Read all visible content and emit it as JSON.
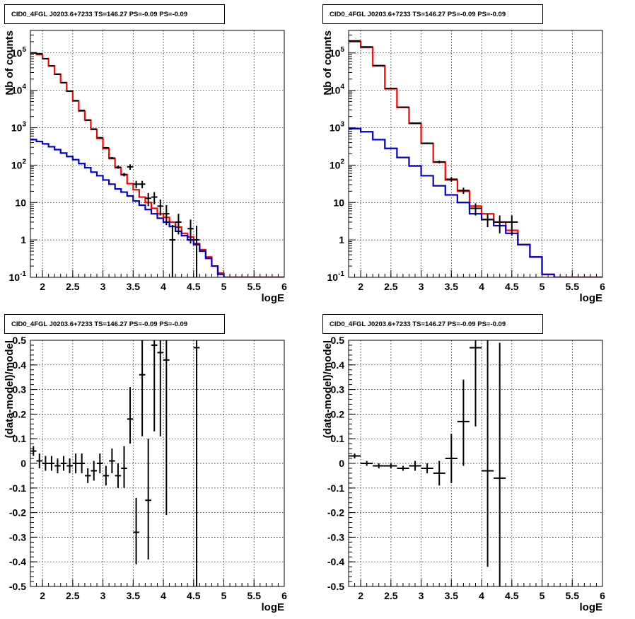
{
  "chart_data": [
    {
      "type": "histogram",
      "title": "CID0_4FGL J0203.6+7233 TS=146.27 PS=-0.09 PS=-0.09",
      "xlabel": "logE",
      "ylabel": "Nb of counts",
      "xlim": [
        1.8,
        6
      ],
      "ylim": [
        0.1,
        400000
      ],
      "log_y": true,
      "grid": true,
      "x_ticks": [
        "2",
        "2.5",
        "3",
        "3.5",
        "4",
        "4.5",
        "5",
        "5.5",
        "6"
      ],
      "y_ticks": [
        "10^-1",
        "1",
        "10",
        "10^2",
        "10^3",
        "10^4",
        "10^5"
      ],
      "bin_edges": [
        1.8,
        1.9,
        2.0,
        2.1,
        2.2,
        2.3,
        2.4,
        2.5,
        2.6,
        2.7,
        2.8,
        2.9,
        3.0,
        3.1,
        3.2,
        3.3,
        3.4,
        3.5,
        3.6,
        3.7,
        3.8,
        3.9,
        4.0,
        4.1,
        4.2,
        4.3,
        4.4,
        4.5,
        4.6,
        4.7,
        4.8,
        4.9,
        5.0,
        5.1,
        5.2,
        6.0
      ],
      "series": [
        {
          "color": "#ff0000",
          "kind": "step",
          "values": [
            100000,
            90000,
            70000,
            45000,
            27000,
            16000,
            9500,
            5200,
            2800,
            1600,
            900,
            520,
            280,
            150,
            85,
            55,
            32,
            22,
            14,
            10,
            7,
            5,
            4,
            3,
            2.2,
            1.5,
            1.2,
            0.8,
            0.55,
            0.35,
            0.2,
            0.13,
            0.1,
            0.1,
            0.1
          ]
        },
        {
          "color": "#0000cc",
          "kind": "step",
          "values": [
            480,
            430,
            370,
            310,
            260,
            210,
            170,
            140,
            110,
            85,
            65,
            52,
            40,
            31,
            23,
            19,
            15,
            11,
            8.5,
            6.5,
            5,
            3.8,
            3,
            2.3,
            1.7,
            1.3,
            1,
            0.75,
            0.5,
            0.32,
            0.2,
            0.12,
            0.1,
            0.1,
            0.1
          ]
        },
        {
          "color": "#000000",
          "kind": "points",
          "x": [
            1.85,
            1.95,
            2.05,
            2.15,
            2.25,
            2.35,
            2.45,
            2.55,
            2.65,
            2.75,
            2.85,
            2.95,
            3.05,
            3.15,
            3.25,
            3.35,
            3.45,
            3.55,
            3.65,
            3.75,
            3.85,
            3.95,
            4.05,
            4.15,
            4.25,
            4.45,
            4.55
          ],
          "y": [
            100000,
            95000,
            70000,
            45000,
            27000,
            16000,
            9500,
            5300,
            2900,
            1600,
            920,
            540,
            290,
            155,
            88,
            56,
            90,
            31,
            31,
            13,
            14,
            8,
            5,
            1,
            3,
            2,
            1
          ],
          "y_low": [
            99000,
            94000,
            69500,
            44700,
            26800,
            15900,
            9400,
            5200,
            2850,
            1550,
            890,
            520,
            275,
            145,
            80,
            50,
            75,
            24,
            24,
            8,
            9,
            4.5,
            2.5,
            0.1,
            1.4,
            0.8,
            0.1
          ],
          "y_high": [
            101000,
            96000,
            70500,
            45300,
            27200,
            16100,
            9600,
            5400,
            2950,
            1650,
            950,
            560,
            305,
            165,
            96,
            62,
            105,
            38,
            38,
            18,
            19,
            12,
            8.5,
            2.5,
            5,
            3.5,
            2.4
          ]
        }
      ]
    },
    {
      "type": "histogram",
      "title": "CID0_4FGL J0203.6+7233 TS=146.27 PS=-0.09 PS=-0.09",
      "xlabel": "logE",
      "ylabel": "Nb of counts",
      "xlim": [
        1.8,
        6
      ],
      "ylim": [
        0.1,
        400000
      ],
      "log_y": true,
      "grid": true,
      "x_ticks": [
        "2",
        "2.5",
        "3",
        "3.5",
        "4",
        "4.5",
        "5",
        "5.5",
        "6"
      ],
      "y_ticks": [
        "10^-1",
        "1",
        "10",
        "10^2",
        "10^3",
        "10^4",
        "10^5"
      ],
      "bin_edges": [
        1.8,
        2.0,
        2.2,
        2.4,
        2.6,
        2.8,
        3.0,
        3.2,
        3.4,
        3.6,
        3.8,
        4.0,
        4.2,
        4.4,
        4.6,
        4.8,
        5.0,
        5.2,
        5.4,
        6.0
      ],
      "series": [
        {
          "color": "#ff0000",
          "kind": "step",
          "values": [
            200000,
            140000,
            45000,
            11000,
            3500,
            1300,
            380,
            120,
            40,
            20,
            8,
            5,
            3,
            1.8,
            0.75,
            0.35,
            0.12,
            0.1,
            0.1
          ]
        },
        {
          "color": "#0000cc",
          "kind": "step",
          "values": [
            950,
            780,
            480,
            280,
            160,
            95,
            52,
            28,
            16,
            10,
            5,
            3.5,
            2.4,
            1.5,
            0.75,
            0.35,
            0.12,
            0.1,
            0.1
          ]
        },
        {
          "color": "#000000",
          "kind": "points",
          "x": [
            1.9,
            2.1,
            2.3,
            2.5,
            2.7,
            2.9,
            3.1,
            3.3,
            3.5,
            3.7,
            3.9,
            4.1,
            4.3,
            4.5
          ],
          "y": [
            210000,
            145000,
            46000,
            11200,
            3550,
            1320,
            385,
            122,
            42,
            21,
            7,
            3.5,
            3,
            3
          ],
          "y_low": [
            209000,
            144500,
            45700,
            11000,
            3450,
            1280,
            365,
            112,
            36,
            17,
            4.5,
            2.2,
            1.5,
            1.3
          ],
          "y_high": [
            211000,
            145500,
            46300,
            11400,
            3650,
            1360,
            405,
            132,
            48,
            25,
            9.5,
            5,
            4.5,
            4.5
          ]
        }
      ]
    },
    {
      "type": "scatter",
      "title": "CID0_4FGL J0203.6+7233 TS=146.27 PS=-0.09 PS=-0.09",
      "xlabel": "logE",
      "ylabel": "(data-model)/model",
      "xlim": [
        1.8,
        6
      ],
      "ylim": [
        -0.5,
        0.5
      ],
      "grid": true,
      "x_ticks": [
        "2",
        "2.5",
        "3",
        "3.5",
        "4",
        "4.5",
        "5",
        "5.5",
        "6"
      ],
      "y_ticks": [
        "-0.5",
        "-0.4",
        "-0.3",
        "-0.2",
        "-0.1",
        "0",
        "0.1",
        "0.2",
        "0.3",
        "0.4",
        "0.5"
      ],
      "series": [
        {
          "color": "#000000",
          "kind": "points",
          "x": [
            1.85,
            1.95,
            2.05,
            2.15,
            2.25,
            2.35,
            2.45,
            2.55,
            2.65,
            2.75,
            2.85,
            2.95,
            3.05,
            3.15,
            3.25,
            3.35,
            3.45,
            3.55,
            3.65,
            3.75,
            3.85,
            3.95,
            4.05,
            4.55
          ],
          "x_err": 0.05,
          "y": [
            0.05,
            0.01,
            0.0,
            0.0,
            -0.01,
            0.0,
            -0.01,
            0.0,
            0.0,
            -0.05,
            -0.03,
            0.0,
            -0.05,
            0.01,
            -0.05,
            -0.02,
            0.18,
            -0.28,
            0.36,
            -0.15,
            0.48,
            0.45,
            0.42,
            0.47
          ],
          "y_low": [
            0.03,
            -0.02,
            -0.03,
            -0.03,
            -0.04,
            -0.03,
            -0.04,
            -0.04,
            -0.04,
            -0.08,
            -0.07,
            -0.04,
            -0.09,
            -0.04,
            -0.1,
            -0.1,
            0.08,
            -0.41,
            0.11,
            -0.39,
            0.13,
            0.11,
            -0.21,
            -0.5
          ],
          "y_high": [
            0.07,
            0.04,
            0.03,
            0.03,
            0.02,
            0.03,
            0.02,
            0.04,
            0.04,
            -0.02,
            0.01,
            0.04,
            -0.01,
            0.06,
            0.0,
            0.07,
            0.31,
            -0.14,
            0.5,
            0.1,
            0.5,
            0.5,
            0.5,
            0.5
          ]
        }
      ]
    },
    {
      "type": "scatter",
      "title": "CID0_4FGL J0203.6+7233 TS=146.27 PS=-0.09 PS=-0.09",
      "xlabel": "logE",
      "ylabel": "(data-model)/model",
      "xlim": [
        1.8,
        6
      ],
      "ylim": [
        -0.5,
        0.5
      ],
      "grid": true,
      "x_ticks": [
        "2",
        "2.5",
        "3",
        "3.5",
        "4",
        "4.5",
        "5",
        "5.5",
        "6"
      ],
      "y_ticks": [
        "-0.5",
        "-0.4",
        "-0.3",
        "-0.2",
        "-0.1",
        "0",
        "0.1",
        "0.2",
        "0.3",
        "0.4",
        "0.5"
      ],
      "series": [
        {
          "color": "#000000",
          "kind": "points",
          "x": [
            1.9,
            2.1,
            2.3,
            2.5,
            2.7,
            2.9,
            3.1,
            3.3,
            3.5,
            3.7,
            3.9,
            4.1,
            4.3
          ],
          "x_err": 0.1,
          "y": [
            0.03,
            0.0,
            -0.01,
            -0.01,
            -0.02,
            -0.01,
            -0.02,
            -0.04,
            0.02,
            0.17,
            0.47,
            -0.03,
            -0.06
          ],
          "y_low": [
            0.02,
            -0.01,
            -0.02,
            -0.02,
            -0.03,
            -0.03,
            -0.04,
            -0.09,
            -0.08,
            -0.01,
            0.15,
            -0.42,
            -0.5
          ],
          "y_high": [
            0.04,
            0.01,
            0.0,
            0.0,
            -0.01,
            0.01,
            0.0,
            0.01,
            0.12,
            0.34,
            0.5,
            0.5,
            0.49
          ]
        }
      ]
    }
  ]
}
